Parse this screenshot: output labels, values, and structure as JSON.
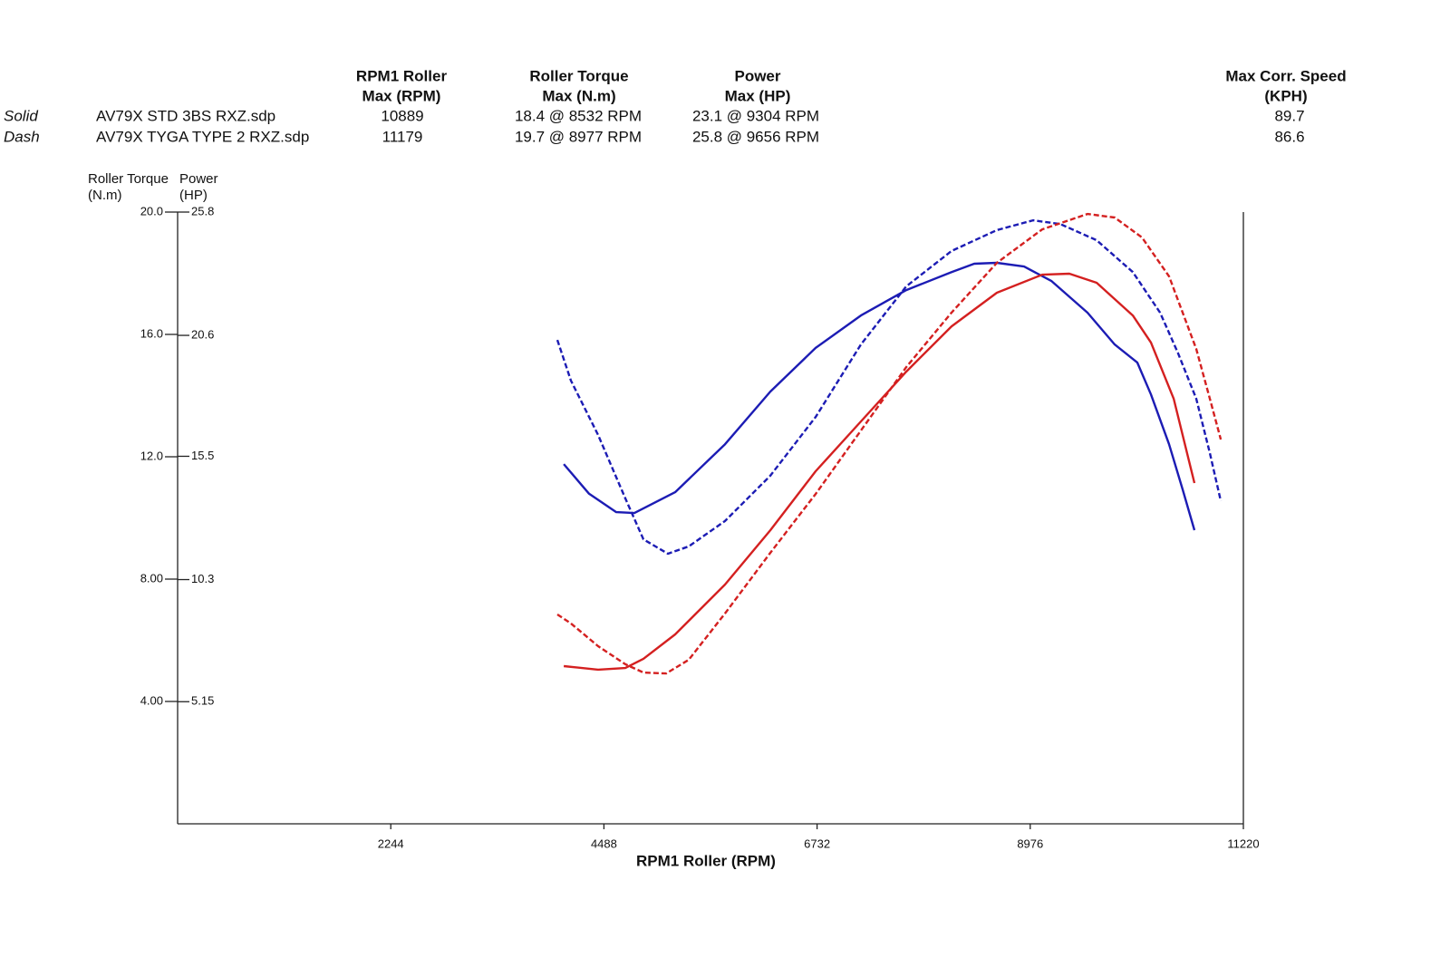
{
  "table": {
    "headers": [
      [
        "RPM1 Roller",
        "Max (RPM)"
      ],
      [
        "Roller Torque",
        "Max (N.m)"
      ],
      [
        "Power",
        "Max (HP)"
      ],
      [
        "Max Corr. Speed",
        "(KPH)"
      ]
    ],
    "rows": [
      [
        "Solid",
        "AV79X STD 3BS RXZ.sdp",
        "10889",
        "18.4 @ 8532 RPM",
        "23.1 @ 9304 RPM",
        "89.7"
      ],
      [
        "Dash",
        "AV79X TYGA TYPE 2 RXZ.sdp",
        "11179",
        "19.7 @ 8977 RPM",
        "25.8 @ 9656 RPM",
        "86.6"
      ]
    ]
  },
  "chart_data": {
    "type": "line",
    "xlabel": "RPM1 Roller (RPM)",
    "ylabel": [
      "Roller Torque",
      "(N.m)"
    ],
    "y2label": [
      "Power",
      "(HP)"
    ],
    "ylabel_color": "#1c1ca8",
    "y2label_color": "#cc2020",
    "xlim": [
      0,
      11220
    ],
    "xticks": [
      2244,
      4488,
      6732,
      8976,
      11220
    ],
    "ylim": [
      0,
      20
    ],
    "yticks": [
      {
        "value": 4,
        "label": "4.00"
      },
      {
        "value": 8,
        "label": "8.00"
      },
      {
        "value": 12,
        "label": "12.0"
      },
      {
        "value": 16,
        "label": "16.0"
      },
      {
        "value": 20,
        "label": "20.0"
      }
    ],
    "y2lim": [
      0,
      25.8
    ],
    "y2ticks": [
      5.15,
      10.3,
      15.5,
      20.6,
      25.8
    ],
    "grid": false,
    "series": [
      {
        "color": "#1c1cb4",
        "dashed": false,
        "x": [
          4065,
          4332,
          4618,
          4809,
          5238,
          5763,
          6240,
          6717,
          7194,
          7671,
          8148,
          8386,
          8625,
          8911,
          9197,
          9579,
          9865,
          10104,
          10247,
          10438,
          10581,
          10705
        ],
        "values": [
          11.76,
          10.79,
          10.19,
          10.16,
          10.84,
          12.41,
          14.13,
          15.56,
          16.62,
          17.45,
          18.04,
          18.31,
          18.34,
          18.22,
          17.75,
          16.71,
          15.67,
          15.08,
          14.04,
          12.41,
          10.93,
          9.6
        ]
      },
      {
        "color": "#1c1cb4",
        "dashed": true,
        "x": [
          3998,
          4141,
          4427,
          4713,
          4904,
          5162,
          5381,
          5763,
          6240,
          6717,
          7194,
          7671,
          8148,
          8625,
          9007,
          9293,
          9675,
          10056,
          10343,
          10533,
          10724,
          10867,
          10982
        ],
        "values": [
          15.82,
          14.49,
          12.71,
          10.64,
          9.3,
          8.83,
          9.07,
          9.9,
          11.38,
          13.3,
          15.67,
          17.57,
          18.73,
          19.41,
          19.73,
          19.61,
          19.08,
          18.04,
          16.71,
          15.38,
          13.9,
          12.12,
          10.55
        ]
      },
      {
        "color": "#d42020",
        "dashed": false,
        "axis": "y2",
        "x": [
          4065,
          4427,
          4713,
          4904,
          5238,
          5763,
          6240,
          6717,
          7194,
          7671,
          8148,
          8625,
          9102,
          9388,
          9675,
          10056,
          10247,
          10486,
          10705
        ],
        "values": [
          6.65,
          6.5,
          6.57,
          6.96,
          7.99,
          10.09,
          12.38,
          14.87,
          16.97,
          19.07,
          20.98,
          22.4,
          23.16,
          23.2,
          22.82,
          21.44,
          20.3,
          17.93,
          14.37
        ]
      },
      {
        "color": "#d42020",
        "dashed": true,
        "axis": "y2",
        "x": [
          3998,
          4141,
          4427,
          4713,
          4904,
          5143,
          5381,
          5763,
          6240,
          6717,
          7194,
          7671,
          8148,
          8625,
          9102,
          9579,
          9865,
          10152,
          10438,
          10724,
          10867,
          10982
        ],
        "values": [
          8.83,
          8.45,
          7.49,
          6.73,
          6.38,
          6.34,
          6.92,
          8.87,
          11.43,
          13.91,
          16.59,
          19.26,
          21.56,
          23.66,
          25.07,
          25.72,
          25.57,
          24.73,
          23.09,
          20.03,
          17.93,
          16.21
        ]
      }
    ]
  }
}
